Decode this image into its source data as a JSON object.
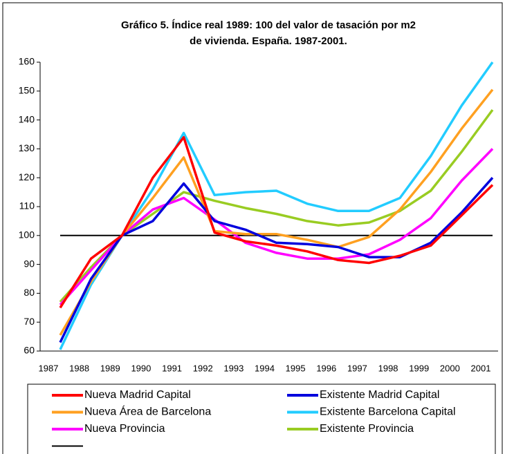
{
  "chart_data": {
    "type": "line",
    "title": [
      "Gráfico 5. Índice real 1989: 100 del valor de tasación por m2",
      "de vivienda. España. 1987-2001."
    ],
    "categories": [
      "1987",
      "1988",
      "1989",
      "1990",
      "1991",
      "1992",
      "1993",
      "1994",
      "1995",
      "1996",
      "1997",
      "1998",
      "1999",
      "2000",
      "2001"
    ],
    "ylim": [
      60,
      160
    ],
    "yticks": [
      60,
      70,
      80,
      90,
      100,
      110,
      120,
      130,
      140,
      150,
      160
    ],
    "series": [
      {
        "name": "Nueva Madrid Capital",
        "color": "#ff0000",
        "values": [
          75,
          92,
          100,
          120,
          134,
          101,
          98,
          96.5,
          94.5,
          91.5,
          90.5,
          93,
          96.5,
          107,
          117.5
        ]
      },
      {
        "name": "Existente Madrid Capital",
        "color": "#0000dd",
        "values": [
          63,
          85,
          100,
          105,
          118,
          105,
          102,
          97.5,
          97,
          96,
          92.5,
          92.5,
          97.5,
          108,
          120
        ]
      },
      {
        "name": "Nueva Área de Barcelona",
        "color": "#ffa020",
        "values": [
          65.5,
          84,
          100,
          113,
          127,
          101.5,
          100.5,
          100.5,
          98.5,
          96,
          99.5,
          109,
          122,
          137,
          150.5
        ]
      },
      {
        "name": "Existente Barcelona Capital",
        "color": "#22ccff",
        "values": [
          60.5,
          83,
          100,
          116,
          135.5,
          114,
          115,
          115.5,
          111,
          108.5,
          108.5,
          113,
          127.5,
          145,
          160
        ]
      },
      {
        "name": "Nueva Provincia",
        "color": "#ff00ff",
        "values": [
          76,
          88,
          100,
          109,
          113,
          105.5,
          97.5,
          94,
          92,
          92,
          93.5,
          98.5,
          106,
          119,
          130
        ]
      },
      {
        "name": "Existente Provincia",
        "color": "#99cc22",
        "values": [
          77,
          89,
          100,
          107.5,
          115,
          112,
          109.5,
          107.5,
          105,
          103.5,
          104.5,
          108.5,
          115.5,
          129,
          143.5
        ]
      },
      {
        "color": "#000000",
        "values": [
          100,
          100,
          100,
          100,
          100,
          100,
          100,
          100,
          100,
          100,
          100,
          100,
          100,
          100,
          100
        ]
      }
    ]
  }
}
